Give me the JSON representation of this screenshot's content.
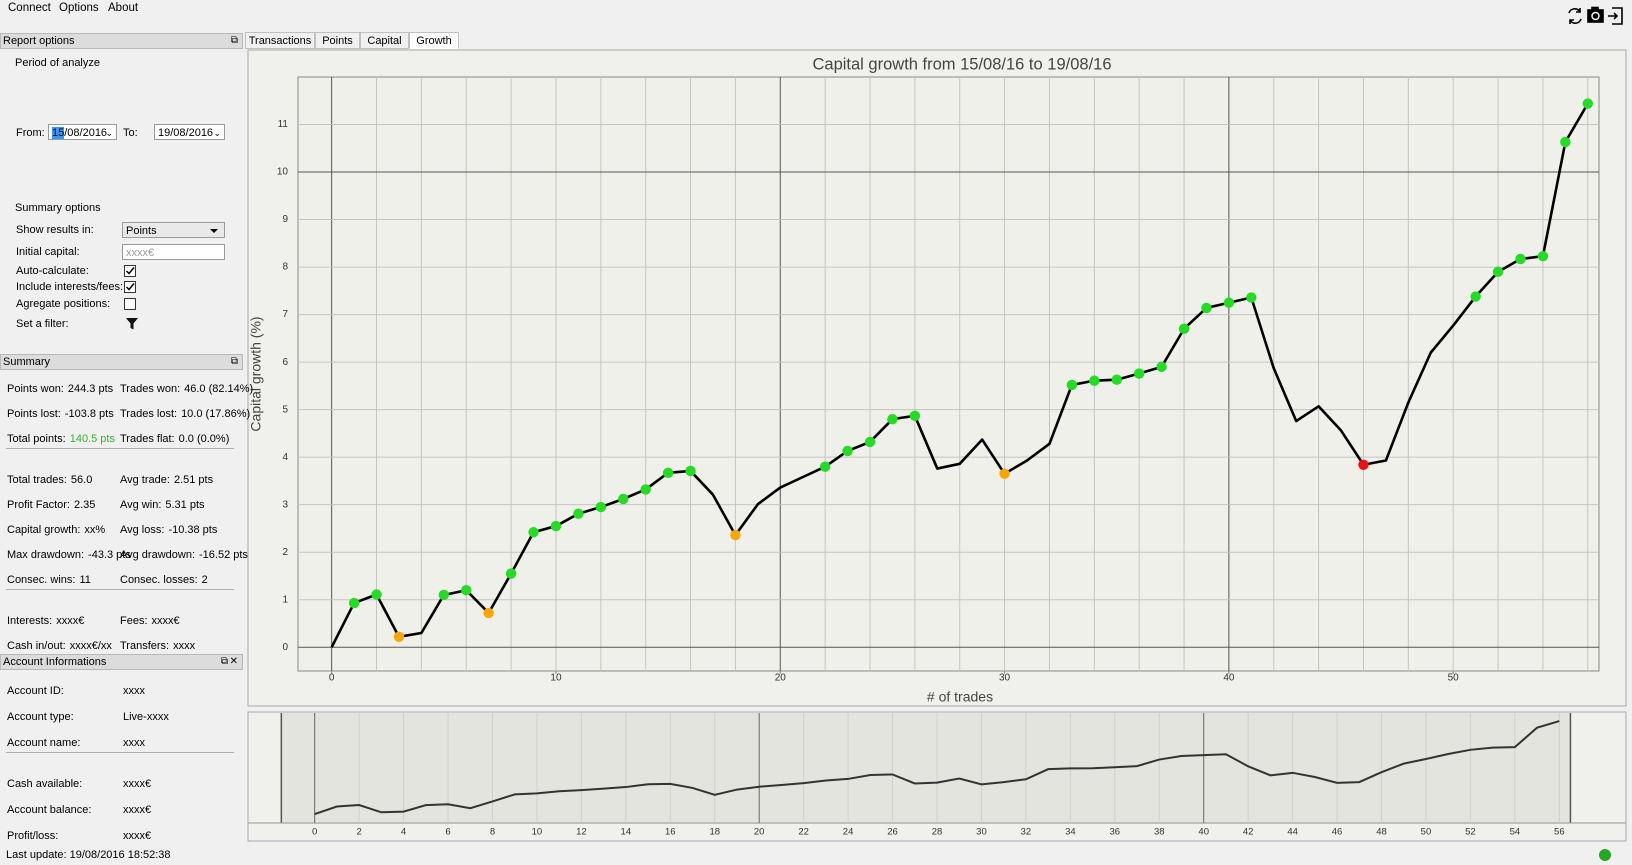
{
  "menu": [
    "Connect",
    "Options",
    "About"
  ],
  "tabs": [
    "Transactions",
    "Points",
    "Capital",
    "Growth"
  ],
  "active_tab": 3,
  "report_options": {
    "title": "Report options",
    "period_label": "Period of analyze",
    "from_label": "From:",
    "from": "15/08/2016",
    "to_label": "To:",
    "to": "19/08/2016",
    "summary_options": "Summary options",
    "show_results_label": "Show results in:",
    "show_results": "Points",
    "initial_capital_label": "Initial capital:",
    "initial_capital_placeholder": "xxxx€",
    "auto_calculate_label": "Auto-calculate:",
    "auto_calculate": true,
    "include_fees_label": "Include interests/fees:",
    "include_fees": true,
    "aggregate_label": "Agregate positions:",
    "aggregate": false,
    "filter_label": "Set a filter:"
  },
  "summary": {
    "title": "Summary",
    "groups": [
      [
        [
          {
            "label": "Points won:",
            "value": "244.3 pts"
          },
          {
            "label": "Trades won:",
            "value": "46.0 (82.14%)"
          }
        ],
        [
          {
            "label": "Points lost:",
            "value": "-103.8 pts"
          },
          {
            "label": "Trades lost:",
            "value": "10.0 (17.86%)"
          }
        ],
        [
          {
            "label": "Total points:",
            "value": "140.5 pts",
            "color": "#2fb52f"
          },
          {
            "label": "Trades flat:",
            "value": "0.0 (0.0%)"
          }
        ]
      ],
      [
        [
          {
            "label": "Total trades:",
            "value": "56.0"
          },
          {
            "label": "Avg trade:",
            "value": "2.51 pts"
          }
        ],
        [
          {
            "label": "Profit Factor:",
            "value": "2.35"
          },
          {
            "label": "Avg win:",
            "value": "5.31 pts"
          }
        ],
        [
          {
            "label": "Capital growth:",
            "value": "xx%"
          },
          {
            "label": "Avg loss:",
            "value": "-10.38 pts"
          }
        ],
        [
          {
            "label": "Max drawdown:",
            "value": "-43.3 pts"
          },
          {
            "label": "Avg drawdown:",
            "value": "-16.52 pts"
          }
        ],
        [
          {
            "label": "Consec. wins:",
            "value": "11"
          },
          {
            "label": "Consec. losses:",
            "value": "2"
          }
        ]
      ],
      [
        [
          {
            "label": "Interests:",
            "value": "xxxx€"
          },
          {
            "label": "Fees:",
            "value": "xxxx€"
          }
        ],
        [
          {
            "label": "Cash in/out:",
            "value": "xxxx€/xx"
          },
          {
            "label": "Transfers:",
            "value": "xxxx"
          }
        ]
      ]
    ]
  },
  "account": {
    "title": "Account Informations",
    "groups": [
      [
        {
          "label": "Account ID:",
          "value": "xxxx"
        },
        {
          "label": "Account type:",
          "value": "Live-xxxx"
        },
        {
          "label": "Account name:",
          "value": "xxxx"
        }
      ],
      [
        {
          "label": "Cash available:",
          "value": "xxxx€"
        },
        {
          "label": "Account balance:",
          "value": "xxxx€"
        },
        {
          "label": "Profit/loss:",
          "value": "xxxx€"
        }
      ]
    ]
  },
  "status": {
    "last_update": "Last update: 19/08/2016 18:52:38"
  },
  "chart_data": {
    "type": "line",
    "title": "Capital growth from 15/08/16 to 19/08/16",
    "xlabel": "# of trades",
    "ylabel": "Capital growth (%)",
    "x": [
      0,
      1,
      2,
      3,
      4,
      5,
      6,
      7,
      8,
      9,
      10,
      11,
      12,
      13,
      14,
      15,
      16,
      17,
      18,
      19,
      20,
      21,
      22,
      23,
      24,
      25,
      26,
      27,
      28,
      29,
      30,
      31,
      32,
      33,
      34,
      35,
      36,
      37,
      38,
      39,
      40,
      41,
      42,
      43,
      44,
      45,
      46,
      47,
      48,
      49,
      50,
      51,
      52,
      53,
      54,
      55,
      56
    ],
    "series": [
      {
        "name": "Capital growth",
        "color": "#000000",
        "values": [
          0,
          0.93,
          1.11,
          0.22,
          0.3,
          1.1,
          1.2,
          0.72,
          1.55,
          2.42,
          2.55,
          2.81,
          2.95,
          3.12,
          3.32,
          3.67,
          3.71,
          3.21,
          2.36,
          3.01,
          3.36,
          3.58,
          3.8,
          4.13,
          4.32,
          4.8,
          4.87,
          3.76,
          3.86,
          4.37,
          3.65,
          3.93,
          4.28,
          5.52,
          5.61,
          5.63,
          5.76,
          5.9,
          6.7,
          7.14,
          7.25,
          7.36,
          5.87,
          4.76,
          5.07,
          4.56,
          3.84,
          3.93,
          5.15,
          6.2,
          6.77,
          7.38,
          7.9,
          8.17,
          8.23,
          10.63,
          11.44
        ],
        "marker_colors": [
          null,
          "#22dd22",
          "#22dd22",
          "#ffa500",
          null,
          "#22dd22",
          "#22dd22",
          "#ffa500",
          "#22dd22",
          "#22dd22",
          "#22dd22",
          "#22dd22",
          "#22dd22",
          "#22dd22",
          "#22dd22",
          "#22dd22",
          "#22dd22",
          null,
          "#ffa500",
          null,
          null,
          null,
          "#22dd22",
          "#22dd22",
          "#22dd22",
          "#22dd22",
          "#22dd22",
          null,
          null,
          null,
          "#ffa500",
          null,
          null,
          "#22dd22",
          "#22dd22",
          "#22dd22",
          "#22dd22",
          "#22dd22",
          "#22dd22",
          "#22dd22",
          "#22dd22",
          "#22dd22",
          null,
          null,
          null,
          null,
          "#ee1111",
          null,
          null,
          null,
          null,
          "#22dd22",
          "#22dd22",
          "#22dd22",
          "#22dd22",
          "#22dd22",
          "#22dd22"
        ]
      }
    ],
    "xlim": [
      -1.5,
      56.5
    ],
    "ylim": [
      -0.5,
      12
    ],
    "xticks": [
      0,
      10,
      20,
      30,
      40,
      50
    ],
    "yticks": [
      0,
      1,
      2,
      3,
      4,
      5,
      6,
      7,
      8,
      9,
      10,
      11
    ],
    "grid": true
  },
  "navigator": {
    "xlim": [
      -3,
      59
    ],
    "ylim": [
      -1.1,
      12.55
    ],
    "xticks": [
      0,
      2,
      4,
      6,
      8,
      10,
      12,
      14,
      16,
      18,
      20,
      22,
      24,
      26,
      28,
      30,
      32,
      34,
      36,
      38,
      40,
      42,
      44,
      46,
      48,
      50,
      52,
      54,
      56
    ]
  }
}
